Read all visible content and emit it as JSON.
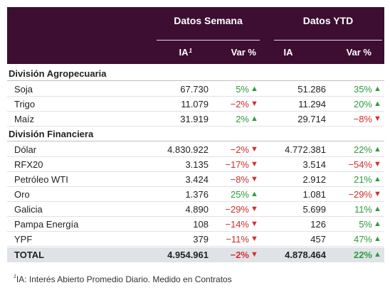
{
  "header": {
    "group_week": "Datos Semana",
    "group_ytd": "Datos YTD",
    "col_ia": "IA",
    "col_ia_sup": "1",
    "col_var": "Var %",
    "col_ia_ytd": "IA",
    "col_var_ytd": "Var %"
  },
  "sections": [
    {
      "title": "División Agropecuaria",
      "rows": [
        {
          "name": "Soja",
          "ia_week": "67.730",
          "var_week": "5%",
          "dir_week": "up",
          "ia_ytd": "51.286",
          "var_ytd": "35%",
          "dir_ytd": "up"
        },
        {
          "name": "Trigo",
          "ia_week": "11.079",
          "var_week": "−2%",
          "dir_week": "down",
          "ia_ytd": "11.294",
          "var_ytd": "20%",
          "dir_ytd": "up"
        },
        {
          "name": "Maíz",
          "ia_week": "31.919",
          "var_week": "2%",
          "dir_week": "up",
          "ia_ytd": "29.714",
          "var_ytd": "−8%",
          "dir_ytd": "down"
        }
      ]
    },
    {
      "title": "División Financiera",
      "rows": [
        {
          "name": "Dólar",
          "ia_week": "4.830.922",
          "var_week": "−2%",
          "dir_week": "down",
          "ia_ytd": "4.772.381",
          "var_ytd": "22%",
          "dir_ytd": "up"
        },
        {
          "name": "RFX20",
          "ia_week": "3.135",
          "var_week": "−17%",
          "dir_week": "down",
          "ia_ytd": "3.514",
          "var_ytd": "−54%",
          "dir_ytd": "down"
        },
        {
          "name": "Petróleo WTI",
          "ia_week": "3.424",
          "var_week": "−8%",
          "dir_week": "down",
          "ia_ytd": "2.912",
          "var_ytd": "21%",
          "dir_ytd": "up"
        },
        {
          "name": "Oro",
          "ia_week": "1.376",
          "var_week": "25%",
          "dir_week": "up",
          "ia_ytd": "1.081",
          "var_ytd": "−29%",
          "dir_ytd": "down"
        },
        {
          "name": "Galicia",
          "ia_week": "4.890",
          "var_week": "−29%",
          "dir_week": "down",
          "ia_ytd": "5.699",
          "var_ytd": "11%",
          "dir_ytd": "up"
        },
        {
          "name": "Pampa Energía",
          "ia_week": "108",
          "var_week": "−14%",
          "dir_week": "down",
          "ia_ytd": "126",
          "var_ytd": "5%",
          "dir_ytd": "up"
        },
        {
          "name": "YPF",
          "ia_week": "379",
          "var_week": "−11%",
          "dir_week": "down",
          "ia_ytd": "457",
          "var_ytd": "47%",
          "dir_ytd": "up"
        }
      ]
    }
  ],
  "total": {
    "name": "TOTAL",
    "ia_week": "4.954.961",
    "var_week": "−2%",
    "dir_week": "down",
    "ia_ytd": "4.878.464",
    "var_ytd": "22%",
    "dir_ytd": "up"
  },
  "footnote": {
    "sup": "1",
    "text": "IA: Interés Abierto Promedio Diario. Medido en Contratos"
  },
  "icons": {
    "up": "triangle-up-icon",
    "down": "triangle-down-icon"
  },
  "colors": {
    "header_bg": "#3d0e32",
    "positive": "#2e9b3e",
    "negative": "#d22e2e",
    "total_bg": "#dfe3e8"
  }
}
